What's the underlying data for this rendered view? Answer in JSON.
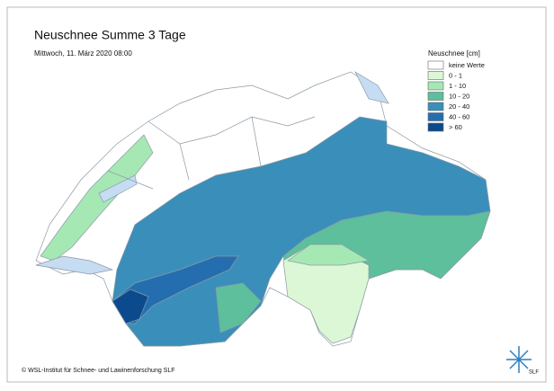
{
  "header": {
    "title": "Neuschnee Summe 3 Tage",
    "subtitle": "Mittwoch, 11. März 2020 08:00"
  },
  "legend": {
    "title": "Neuschnee [cm]",
    "items": [
      {
        "label": "keine Werte",
        "color": "#ffffff"
      },
      {
        "label": "0 - 1",
        "color": "#dcf7d6"
      },
      {
        "label": "1 - 10",
        "color": "#a6e8b4"
      },
      {
        "label": "10 - 20",
        "color": "#5dbf9c"
      },
      {
        "label": "20 - 40",
        "color": "#3a8fba"
      },
      {
        "label": "40 - 60",
        "color": "#246eb0"
      },
      {
        "label": "> 60",
        "color": "#0c4a8e"
      }
    ]
  },
  "footer": {
    "copyright": "© WSL-Institut für Schnee- und Lawinenforschung SLF",
    "logo": "SLF"
  }
}
